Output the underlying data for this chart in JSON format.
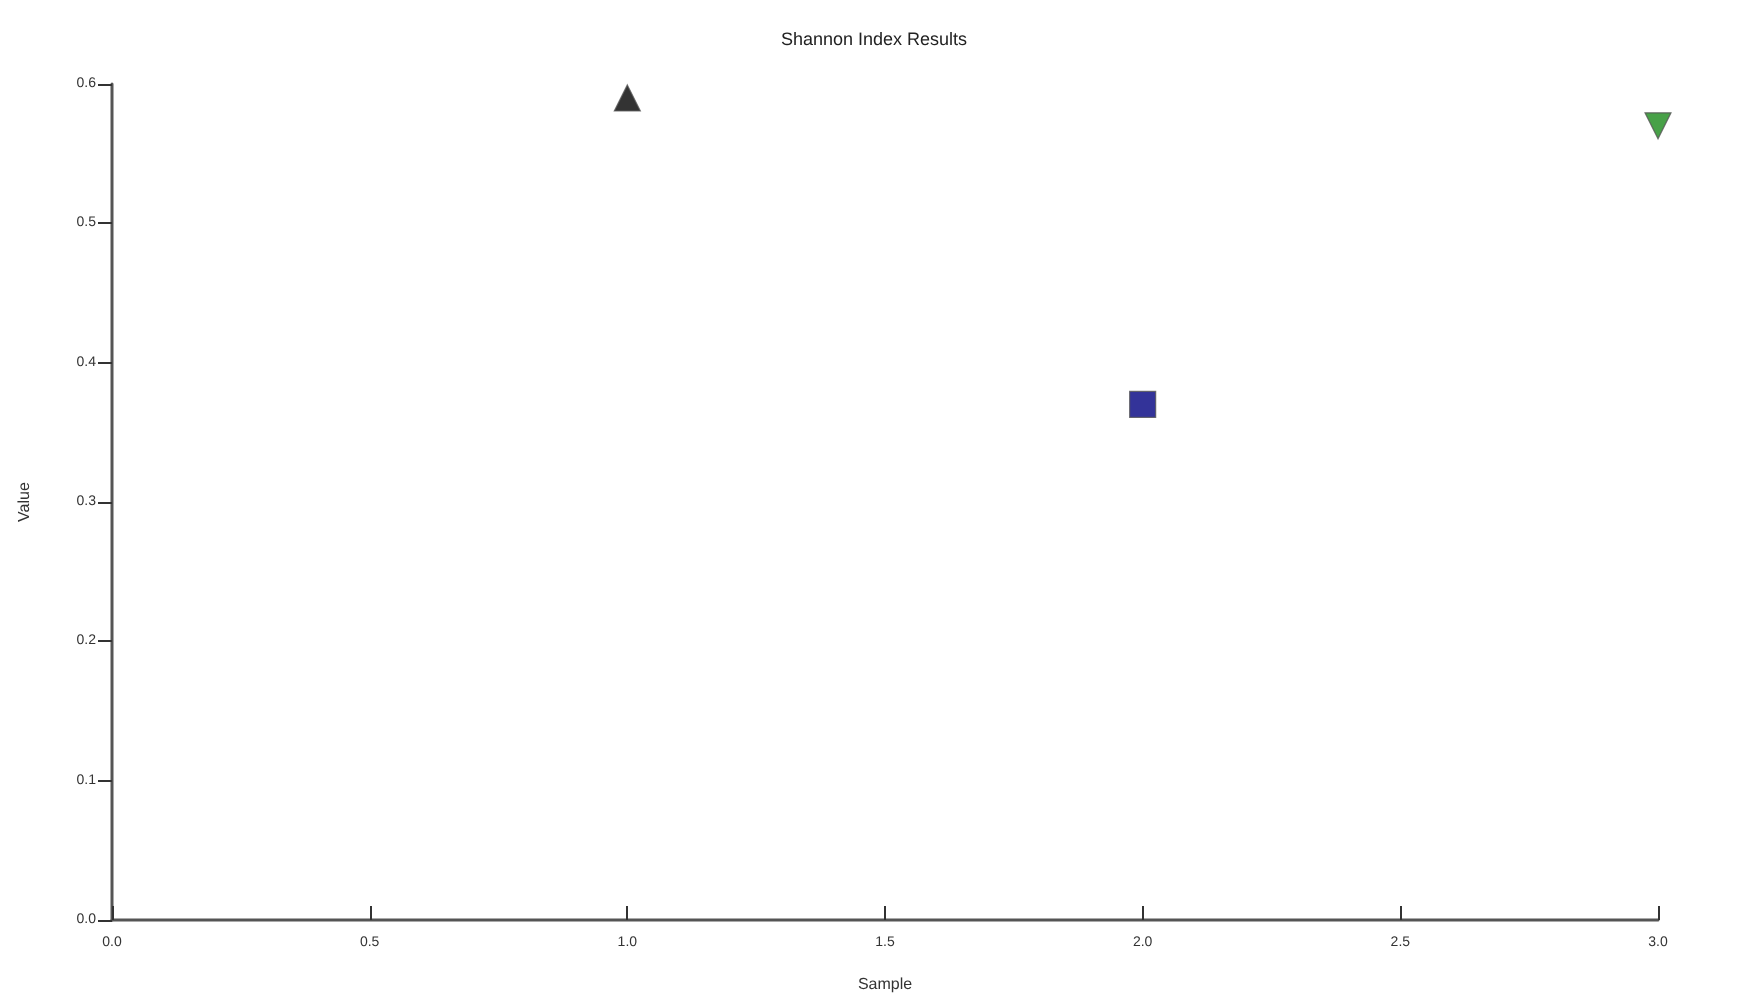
{
  "chart_data": {
    "type": "scatter",
    "title": "Shannon Index Results",
    "xlabel": "Sample",
    "ylabel": "Value",
    "xlim": [
      0,
      3
    ],
    "xticks": [
      {
        "value": 0,
        "label": "0.0"
      },
      {
        "value": 0.5,
        "label": "0.5"
      },
      {
        "value": 1,
        "label": "1.0"
      },
      {
        "value": 1.5,
        "label": "1.5"
      },
      {
        "value": 2,
        "label": "2.0"
      },
      {
        "value": 2.5,
        "label": "2.5"
      },
      {
        "value": 3,
        "label": "3.0"
      }
    ],
    "ylim": [
      0,
      0.6
    ],
    "yticks": [
      {
        "value": 0,
        "label": "0.0"
      },
      {
        "value": 0.1,
        "label": "0.1"
      },
      {
        "value": 0.2,
        "label": "0.2"
      },
      {
        "value": 0.3,
        "label": "0.3"
      },
      {
        "value": 0.4,
        "label": "0.4"
      },
      {
        "value": 0.5,
        "label": "0.5"
      },
      {
        "value": 0.6,
        "label": "0.6"
      }
    ],
    "grid": false,
    "series": [
      {
        "color": "#000000",
        "marker": "triangle",
        "x": [
          1
        ],
        "values": [
          0.59
        ]
      },
      {
        "color": "#000080",
        "marker": "square",
        "x": [
          2
        ],
        "values": [
          0.37
        ]
      },
      {
        "color": "#1a8a1a",
        "marker": "triangle-down",
        "x": [
          3
        ],
        "values": [
          0.57
        ]
      }
    ]
  }
}
